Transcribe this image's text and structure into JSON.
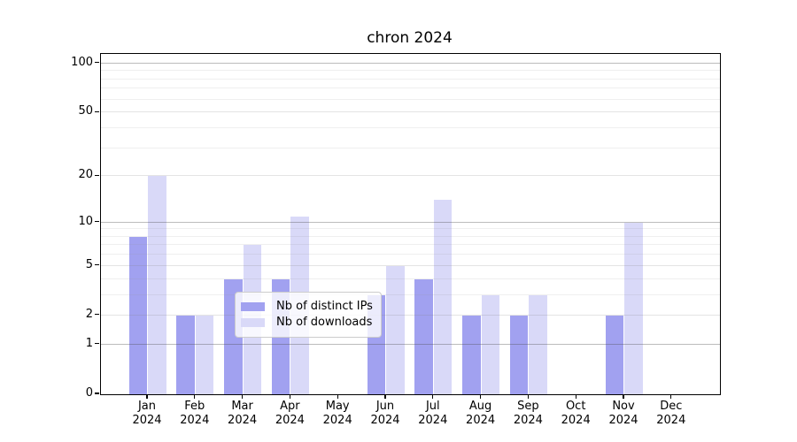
{
  "title": "chron 2024",
  "chart_data": {
    "type": "bar",
    "title": "chron 2024",
    "categories": [
      "Jan",
      "Feb",
      "Mar",
      "Apr",
      "May",
      "Jun",
      "Jul",
      "Aug",
      "Sep",
      "Oct",
      "Nov",
      "Dec"
    ],
    "year": "2024",
    "series": [
      {
        "name": "Nb of distinct IPs",
        "color": "#a1a1f0",
        "values": [
          8,
          2,
          4,
          4,
          0,
          3,
          4,
          2,
          2,
          0,
          2,
          0
        ]
      },
      {
        "name": "Nb of downloads",
        "color": "#d9d9f8",
        "values": [
          20,
          2,
          7,
          11,
          0,
          5,
          14,
          3,
          3,
          0,
          10,
          0
        ]
      }
    ],
    "y_ticks": [
      0,
      1,
      2,
      5,
      10,
      20,
      50,
      100
    ],
    "y_minor_gridlines": [
      3,
      4,
      6,
      7,
      8,
      9,
      30,
      40,
      60,
      70,
      80,
      90
    ],
    "y_mid_gridlines": [
      2,
      5,
      20,
      50
    ],
    "y_major_gridlines": [
      1,
      10,
      100
    ],
    "y_scale": "log1p",
    "ylim": [
      0,
      114
    ],
    "grid": true,
    "legend_position": "lower center",
    "background_color": "#ffffff",
    "axis_color": "#000000"
  }
}
